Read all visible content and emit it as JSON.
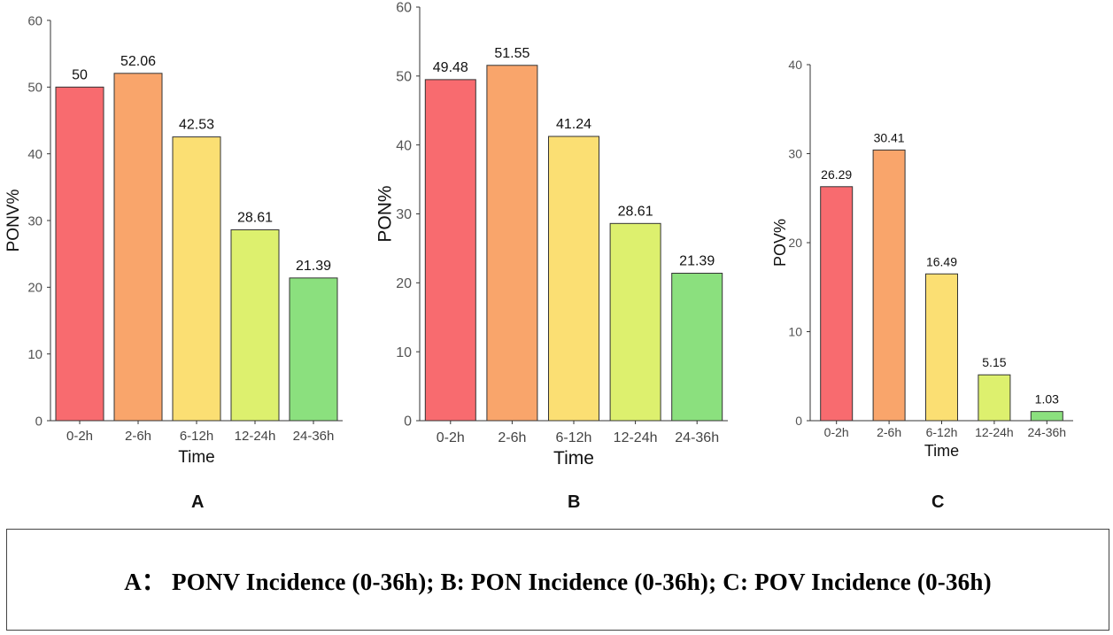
{
  "caption": "A： PONV Incidence (0-36h); B: PON Incidence (0-36h); C: POV Incidence (0-36h)",
  "chart_data": [
    {
      "panel": "A",
      "type": "bar",
      "xlabel": "Time",
      "ylabel": "PONV%",
      "ylim": [
        0,
        60
      ],
      "yticks": [
        0,
        10,
        20,
        30,
        40,
        50,
        60
      ],
      "categories": [
        "0-2h",
        "2-6h",
        "6-12h",
        "12-24h",
        "24-36h"
      ],
      "values": [
        50,
        52.06,
        42.53,
        28.61,
        21.39
      ],
      "labels": [
        "50",
        "52.06",
        "42.53",
        "28.61",
        "21.39"
      ],
      "colors": [
        "#f86b6f",
        "#f9a56b",
        "#fbdf73",
        "#ddf06e",
        "#8be07e"
      ]
    },
    {
      "panel": "B",
      "type": "bar",
      "xlabel": "Time",
      "ylabel": "PON%",
      "ylim": [
        0,
        60
      ],
      "yticks": [
        0,
        10,
        20,
        30,
        40,
        50,
        60
      ],
      "categories": [
        "0-2h",
        "2-6h",
        "6-12h",
        "12-24h",
        "24-36h"
      ],
      "values": [
        49.48,
        51.55,
        41.24,
        28.61,
        21.39
      ],
      "labels": [
        "49.48",
        "51.55",
        "41.24",
        "28.61",
        "21.39"
      ],
      "colors": [
        "#f86b6f",
        "#f9a56b",
        "#fbdf73",
        "#ddf06e",
        "#8be07e"
      ]
    },
    {
      "panel": "C",
      "type": "bar",
      "xlabel": "Time",
      "ylabel": "POV%",
      "ylim": [
        0,
        40
      ],
      "yticks": [
        0,
        10,
        20,
        30,
        40
      ],
      "categories": [
        "0-2h",
        "2-6h",
        "6-12h",
        "12-24h",
        "24-36h"
      ],
      "values": [
        26.29,
        30.41,
        16.49,
        5.15,
        1.03
      ],
      "labels": [
        "26.29",
        "30.41",
        "16.49",
        "5.15",
        "1.03"
      ],
      "colors": [
        "#f86b6f",
        "#f9a56b",
        "#fbdf73",
        "#ddf06e",
        "#8be07e"
      ]
    }
  ]
}
